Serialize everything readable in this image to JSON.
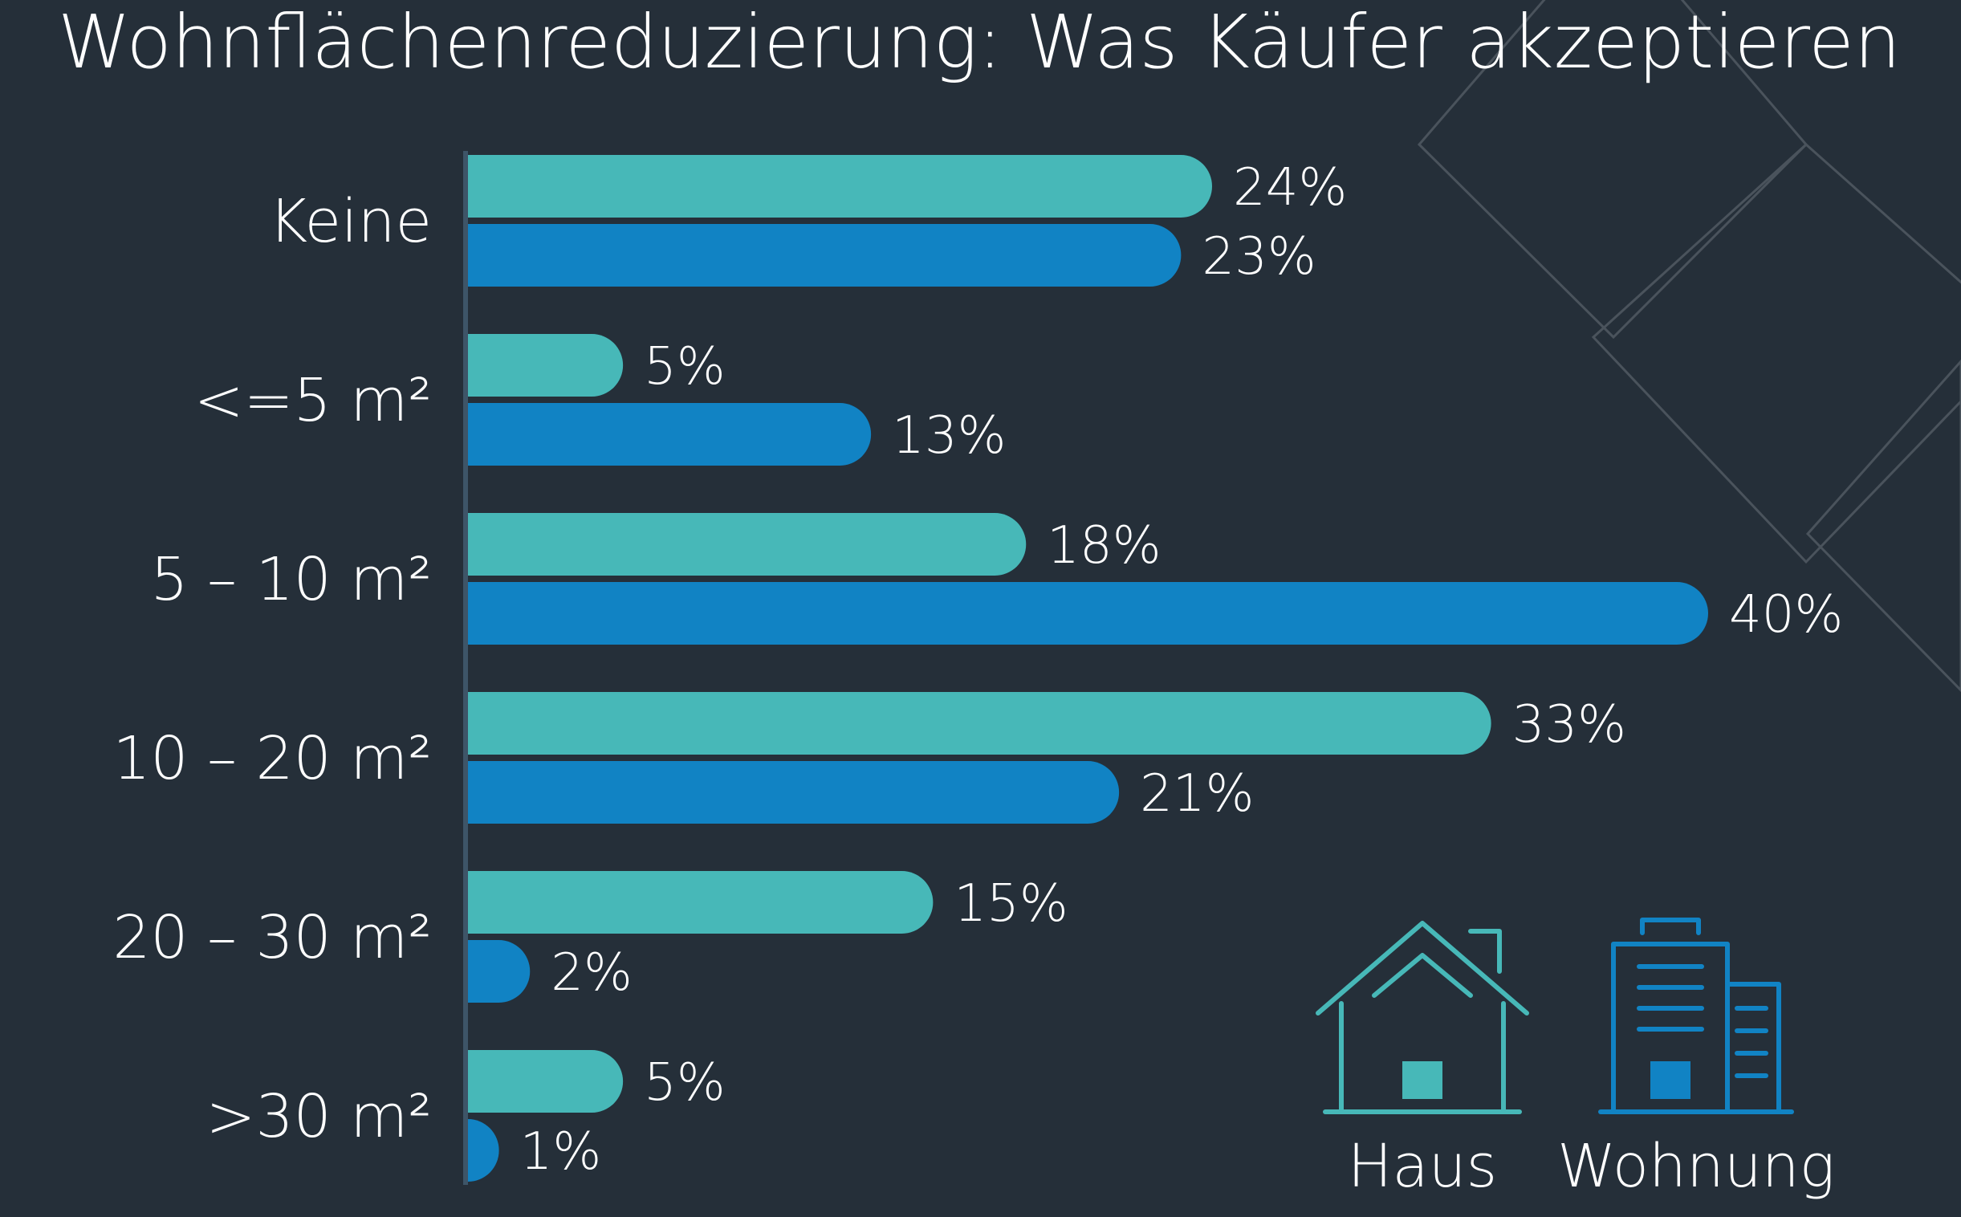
{
  "title": "Wohnflächenreduzierung: Was Käufer akzeptieren",
  "colors": {
    "background": "#252f39",
    "haus": "#47b8b8",
    "wohnung": "#1183c4",
    "axis": "#3e5568"
  },
  "legend": {
    "haus": {
      "label": "Haus",
      "icon": "house-icon"
    },
    "wohnung": {
      "label": "Wohnung",
      "icon": "apartment-building-icon"
    }
  },
  "chart_data": {
    "type": "bar",
    "orientation": "horizontal",
    "title": "Wohnflächenreduzierung: Was Käufer akzeptieren",
    "categories": [
      "Keine",
      "<=5 m²",
      "5 – 10 m²",
      "10 – 20 m²",
      "20 – 30 m²",
      ">30  m²"
    ],
    "series": [
      {
        "name": "Haus",
        "values": [
          24,
          5,
          18,
          33,
          15,
          5
        ],
        "labels": [
          "24%",
          "5%",
          "18%",
          "33%",
          "15%",
          "5%"
        ]
      },
      {
        "name": "Wohnung",
        "values": [
          23,
          13,
          40,
          21,
          2,
          1
        ],
        "labels": [
          "23%",
          "13%",
          "40%",
          "21%",
          "2%",
          "1%"
        ]
      }
    ],
    "unit": "%",
    "xlim": [
      0,
      40
    ],
    "grid": false,
    "legend_position": "bottom-right"
  }
}
